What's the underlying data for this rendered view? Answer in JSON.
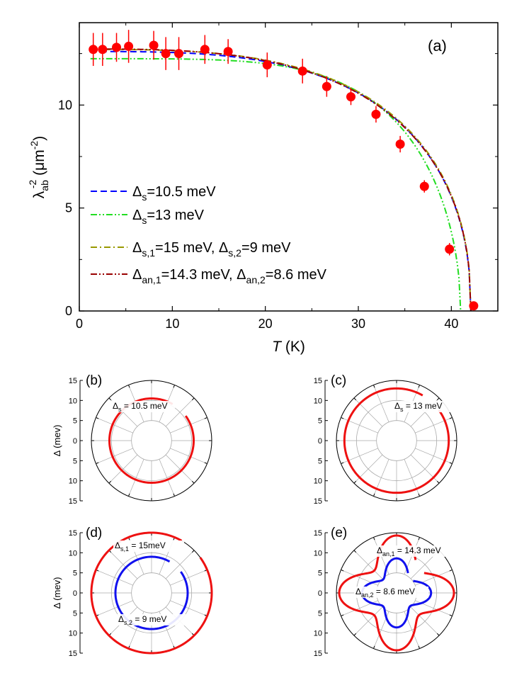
{
  "chart_data": [
    {
      "id": "a",
      "type": "scatter",
      "panel_label": "(a)",
      "xlabel": "T",
      "xunit": "(K)",
      "ylabel_main": "λ",
      "ylabel_sub": "ab",
      "ylabel_sup": "-2",
      "ylabel_unit_pre": "(μm",
      "ylabel_unit_sup": "-2",
      "ylabel_unit_post": ")",
      "xlim": [
        0,
        45
      ],
      "ylim": [
        0,
        14
      ],
      "xticks": [
        0,
        10,
        20,
        30,
        40
      ],
      "yticks": [
        0,
        5,
        10
      ],
      "data_points": {
        "color": "#ff0000",
        "points": [
          {
            "x": 1.5,
            "y": 12.7,
            "err": 0.8
          },
          {
            "x": 2.5,
            "y": 12.7,
            "err": 0.8
          },
          {
            "x": 4.0,
            "y": 12.8,
            "err": 0.7
          },
          {
            "x": 5.3,
            "y": 12.85,
            "err": 0.8
          },
          {
            "x": 8.0,
            "y": 12.9,
            "err": 0.7
          },
          {
            "x": 9.3,
            "y": 12.5,
            "err": 0.8
          },
          {
            "x": 10.7,
            "y": 12.5,
            "err": 0.8
          },
          {
            "x": 13.5,
            "y": 12.7,
            "err": 0.7
          },
          {
            "x": 16.0,
            "y": 12.6,
            "err": 0.6
          },
          {
            "x": 20.2,
            "y": 11.95,
            "err": 0.6
          },
          {
            "x": 24.0,
            "y": 11.65,
            "err": 0.6
          },
          {
            "x": 26.6,
            "y": 10.9,
            "err": 0.5
          },
          {
            "x": 29.2,
            "y": 10.4,
            "err": 0.4
          },
          {
            "x": 31.9,
            "y": 9.55,
            "err": 0.4
          },
          {
            "x": 34.5,
            "y": 8.1,
            "err": 0.4
          },
          {
            "x": 37.1,
            "y": 6.05,
            "err": 0.3
          },
          {
            "x": 39.8,
            "y": 3.0,
            "err": 0.3
          },
          {
            "x": 42.4,
            "y": 0.25,
            "err": 0.1
          }
        ]
      },
      "series": [
        {
          "name_pre": "Δ",
          "name_sub": "s",
          "name_post": "=10.5 meV",
          "color": "#0000ff",
          "dash": "dash",
          "lambda0": 12.6,
          "tc": 42.1,
          "k": 0.44,
          "exp": 3.3
        },
        {
          "name_pre": "Δ",
          "name_sub": "s",
          "name_post": "=13 meV",
          "color": "#22dd22",
          "dash": "dashdotdot",
          "lambda0": 12.25,
          "tc": 41.0,
          "k": 0.52,
          "exp": 4.6
        },
        {
          "name_pre": "Δ",
          "name_sub": "s,1",
          "name_mid": "=15 meV, Δ",
          "name_sub2": "s,2",
          "name_post": "=9 meV",
          "color": "#999900",
          "dash": "dashdot",
          "lambda0": 12.7,
          "tc": 42.1,
          "k": 0.43,
          "exp": 3.2
        },
        {
          "name_pre": "Δ",
          "name_sub": "an,1",
          "name_mid": "=14.3 meV, Δ",
          "name_sub2": "an,2",
          "name_post": "=8.6 meV",
          "color": "#990000",
          "dash": "dashdotdot",
          "lambda0": 12.72,
          "tc": 42.1,
          "k": 0.43,
          "exp": 3.1
        }
      ],
      "legend_position": "middle-left"
    },
    {
      "id": "b",
      "type": "polar",
      "panel_label": "(b)",
      "ylabel": "Δ (mev)",
      "rmax": 15,
      "rticks": [
        15,
        10,
        5,
        0,
        5,
        10,
        15
      ],
      "curves": [
        {
          "label_pre": "Δ",
          "label_sub": "s",
          "label_post": " = 10.5 meV",
          "color": "#ee1111",
          "shape": "s",
          "gap": 10.5
        }
      ]
    },
    {
      "id": "c",
      "type": "polar",
      "panel_label": "(c)",
      "ylabel": "",
      "rmax": 15,
      "rticks": [
        15,
        10,
        5,
        0,
        5,
        10,
        15
      ],
      "curves": [
        {
          "label_pre": "Δ",
          "label_sub": "s",
          "label_post": " = 13 meV",
          "color": "#ee1111",
          "shape": "s",
          "gap": 13
        }
      ]
    },
    {
      "id": "d",
      "type": "polar",
      "panel_label": "(d)",
      "ylabel": "Δ (mev)",
      "rmax": 15,
      "rticks": [
        15,
        10,
        5,
        0,
        5,
        10,
        15
      ],
      "curves": [
        {
          "label_pre": "Δ",
          "label_sub": "s,1",
          "label_post": " = 15meV",
          "color": "#ee1111",
          "shape": "s",
          "gap": 15
        },
        {
          "label_pre": "Δ",
          "label_sub": "s,2",
          "label_post": " = 9 meV",
          "color": "#1111ee",
          "shape": "s",
          "gap": 9
        }
      ]
    },
    {
      "id": "e",
      "type": "polar",
      "panel_label": "(e)",
      "ylabel": "",
      "rmax": 15,
      "rticks": [
        15,
        10,
        5,
        0,
        5,
        10,
        15
      ],
      "curves": [
        {
          "label_pre": "Δ",
          "label_sub": "an,1",
          "label_post": " = 14.3 meV",
          "color": "#ee1111",
          "shape": "an",
          "gap": 14.3
        },
        {
          "label_pre": "Δ",
          "label_sub": "an,2",
          "label_post": " = 8.6 meV",
          "color": "#1111ee",
          "shape": "an",
          "gap": 8.6
        }
      ]
    }
  ]
}
